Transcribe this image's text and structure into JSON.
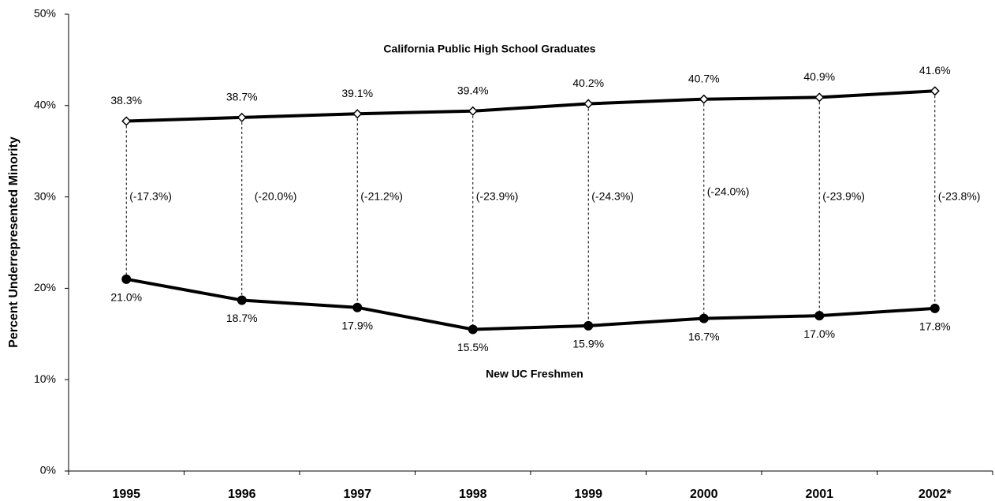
{
  "chart_data": {
    "type": "line",
    "y_label": "Percent Underrepresented Minority",
    "categories": [
      "1995",
      "1996",
      "1997",
      "1998",
      "1999",
      "2000",
      "2001",
      "2002*"
    ],
    "series": [
      {
        "name": "California Public High School Graduates",
        "color": "#000000",
        "marker": "diamond",
        "values": [
          38.3,
          38.7,
          39.1,
          39.4,
          40.2,
          40.7,
          40.9,
          41.6
        ],
        "value_labels": [
          "38.3%",
          "38.7%",
          "39.1%",
          "39.4%",
          "40.2%",
          "40.7%",
          "40.9%",
          "41.6%"
        ]
      },
      {
        "name": "New UC Freshmen",
        "color": "#000000",
        "marker": "circle",
        "values": [
          21.0,
          18.7,
          17.9,
          15.5,
          15.9,
          16.7,
          17.0,
          17.8
        ],
        "value_labels": [
          "21.0%",
          "18.7%",
          "17.9%",
          "15.5%",
          "15.9%",
          "16.7%",
          "17.0%",
          "17.8%"
        ]
      }
    ],
    "differences": {
      "values": [
        -17.3,
        -20.0,
        -21.2,
        -23.9,
        -24.3,
        -24.0,
        -23.9,
        -23.8
      ],
      "value_labels": [
        "(-17.3%)",
        "(-20.0%)",
        "(-21.2%)",
        "(-23.9%)",
        "(-24.3%)",
        "(-24.0%)",
        "(-23.9%)",
        "(-23.8%)"
      ]
    },
    "ylim": [
      0,
      50
    ],
    "yticks": [
      {
        "value": 0,
        "label": "0%"
      },
      {
        "value": 10,
        "label": "10%"
      },
      {
        "value": 20,
        "label": "20%"
      },
      {
        "value": 30,
        "label": "30%"
      },
      {
        "value": 40,
        "label": "40%"
      },
      {
        "value": 50,
        "label": "50%"
      }
    ],
    "grid": false
  }
}
